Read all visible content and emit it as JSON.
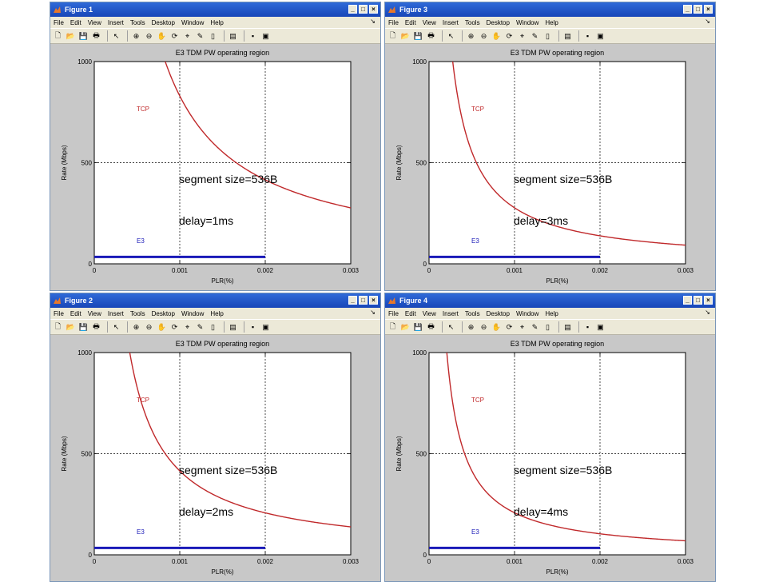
{
  "menu": [
    "File",
    "Edit",
    "View",
    "Insert",
    "Tools",
    "Desktop",
    "Window",
    "Help"
  ],
  "menu_arrow": "↘",
  "title_buttons": [
    "_",
    "□",
    "×"
  ],
  "icons": [
    "new-file-icon",
    "open-folder-icon",
    "save-icon",
    "print-icon",
    "pointer-icon",
    "zoom-in-icon",
    "zoom-out-icon",
    "pan-hand-icon",
    "rotate-icon",
    "data-cursor-icon",
    "brush-icon",
    "colorbar-icon",
    "legend-icon",
    "hide-plot-tools-icon",
    "show-plot-tools-icon"
  ],
  "axes": {
    "title": "E3 TDM PW operating region",
    "xlabel": "PLR(%)",
    "ylabel": "Rate (Mbps)",
    "xticks": [
      "0",
      "0.001",
      "0.002",
      "0.003"
    ],
    "yticks": [
      "0",
      "500",
      "1000"
    ],
    "tcp_label": "TCP",
    "e3_label": "E3",
    "segment_text": "segment size=536B"
  },
  "colors": {
    "tcp": "#c0292b",
    "e3": "#1a1ab8",
    "titlebar": "#2f6ad8"
  },
  "figures": [
    {
      "title": "Figure 1",
      "delay": "delay=1ms",
      "k": 0.83
    },
    {
      "title": "Figure 3",
      "delay": "delay=3ms",
      "k": 0.277
    },
    {
      "title": "Figure 2",
      "delay": "delay=2ms",
      "k": 0.415
    },
    {
      "title": "Figure 4",
      "delay": "delay=4ms",
      "k": 0.208
    }
  ],
  "chart_data": [
    {
      "type": "line",
      "title": "E3 TDM PW operating region",
      "xlabel": "PLR(%)",
      "ylabel": "Rate (Mbps)",
      "xlim": [
        0,
        0.003
      ],
      "ylim": [
        0,
        1000
      ],
      "grid": true,
      "series": [
        {
          "name": "TCP",
          "x": [
            0.0008,
            0.001,
            0.0015,
            0.002,
            0.0025,
            0.003
          ],
          "y": [
            1000,
            830,
            553,
            415,
            332,
            277
          ]
        },
        {
          "name": "E3",
          "x": [
            0,
            0.002
          ],
          "y": [
            34,
            34
          ]
        }
      ],
      "annotations": [
        "segment size=536B",
        "delay=1ms"
      ]
    },
    {
      "type": "line",
      "title": "E3 TDM PW operating region",
      "xlabel": "PLR(%)",
      "ylabel": "Rate (Mbps)",
      "xlim": [
        0,
        0.003
      ],
      "ylim": [
        0,
        1000
      ],
      "grid": true,
      "series": [
        {
          "name": "TCP",
          "x": [
            0.0003,
            0.0005,
            0.001,
            0.0015,
            0.002,
            0.0025,
            0.003
          ],
          "y": [
            923,
            554,
            277,
            185,
            138,
            111,
            92
          ]
        },
        {
          "name": "E3",
          "x": [
            0,
            0.002
          ],
          "y": [
            34,
            34
          ]
        }
      ],
      "annotations": [
        "segment size=536B",
        "delay=3ms"
      ]
    },
    {
      "type": "line",
      "title": "E3 TDM PW operating region",
      "xlabel": "PLR(%)",
      "ylabel": "Rate (Mbps)",
      "xlim": [
        0,
        0.003
      ],
      "ylim": [
        0,
        1000
      ],
      "grid": true,
      "series": [
        {
          "name": "TCP",
          "x": [
            0.0004,
            0.0005,
            0.001,
            0.0015,
            0.002,
            0.0025,
            0.003
          ],
          "y": [
            1000,
            830,
            415,
            277,
            208,
            166,
            138
          ]
        },
        {
          "name": "E3",
          "x": [
            0,
            0.002
          ],
          "y": [
            34,
            34
          ]
        }
      ],
      "annotations": [
        "segment size=536B",
        "delay=2ms"
      ]
    },
    {
      "type": "line",
      "title": "E3 TDM PW operating region",
      "xlabel": "PLR(%)",
      "ylabel": "Rate (Mbps)",
      "xlim": [
        0,
        0.003
      ],
      "ylim": [
        0,
        1000
      ],
      "grid": true,
      "series": [
        {
          "name": "TCP",
          "x": [
            0.0002,
            0.0005,
            0.001,
            0.0015,
            0.002,
            0.0025,
            0.003
          ],
          "y": [
            1000,
            416,
            208,
            139,
            104,
            83,
            69
          ]
        },
        {
          "name": "E3",
          "x": [
            0,
            0.002
          ],
          "y": [
            34,
            34
          ]
        }
      ],
      "annotations": [
        "segment size=536B",
        "delay=4ms"
      ]
    }
  ]
}
